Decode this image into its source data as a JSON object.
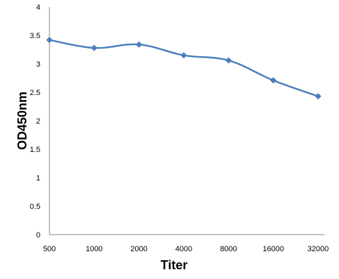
{
  "chart_data": {
    "type": "line",
    "title": "",
    "xlabel": "Titer",
    "ylabel": "OD450nm",
    "categories": [
      "500",
      "1000",
      "2000",
      "4000",
      "8000",
      "16000",
      "32000"
    ],
    "series": [
      {
        "values": [
          3.42,
          3.28,
          3.34,
          3.15,
          3.06,
          2.71,
          2.43
        ]
      }
    ],
    "ylim": [
      0,
      4
    ],
    "yticks": [
      "0",
      "0.5",
      "1",
      "1.5",
      "2",
      "2.5",
      "3",
      "3.5",
      "4"
    ],
    "grid": false,
    "legend": "none",
    "series_color": "#4a7ebb",
    "marker": "diamond"
  }
}
